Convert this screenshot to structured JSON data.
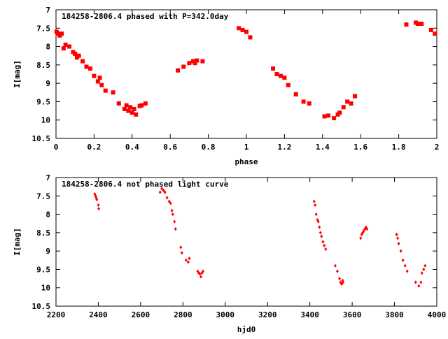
{
  "chart_data": [
    {
      "type": "scatter",
      "title": "184258-2806.4 phased with P=342.0day",
      "xlabel": "phase",
      "ylabel": "I[mag]",
      "xlim": [
        0,
        2
      ],
      "ylim": [
        10.5,
        7
      ],
      "y_inverted": true,
      "xticks": [
        "0",
        "0.2",
        "0.4",
        "0.6",
        "0.8",
        "1",
        "1.2",
        "1.4",
        "1.6",
        "1.8",
        "2"
      ],
      "yticks": [
        "7",
        "7.5",
        "8",
        "8.5",
        "9",
        "9.5",
        "10",
        "10.5"
      ],
      "marker": "filled-square",
      "color": "#ff0000",
      "grid": false,
      "legend": "none",
      "x": [
        0.003,
        0.01,
        0.02,
        0.03,
        0.05,
        0.07,
        0.09,
        0.1,
        0.12,
        0.14,
        0.16,
        0.18,
        0.2,
        0.22,
        0.24,
        0.26,
        0.3,
        0.33,
        0.36,
        0.38,
        0.4,
        0.42,
        0.45,
        0.47,
        0.64,
        0.67,
        0.7,
        0.72,
        0.74,
        0.77,
        0.96,
        0.98,
        1.0,
        1.02,
        1.14,
        1.16,
        1.18,
        1.2,
        1.22,
        1.26,
        1.3,
        1.33,
        1.41,
        1.46,
        1.49,
        1.51,
        1.53,
        1.57,
        1.84,
        1.89,
        1.9,
        1.92,
        1.97,
        1.99,
        0.04,
        0.11,
        0.23,
        0.37,
        0.39,
        0.41,
        0.44,
        0.73,
        1.43,
        1.48,
        1.55
      ],
      "y": [
        7.6,
        7.65,
        7.7,
        7.65,
        7.95,
        8.0,
        8.15,
        8.2,
        8.25,
        8.4,
        8.55,
        8.6,
        8.8,
        8.95,
        9.05,
        9.2,
        9.25,
        9.55,
        9.7,
        9.75,
        9.8,
        9.85,
        9.6,
        9.55,
        8.65,
        8.55,
        8.45,
        8.4,
        8.38,
        8.4,
        7.5,
        7.55,
        7.6,
        7.75,
        8.6,
        8.75,
        8.8,
        8.85,
        9.05,
        9.3,
        9.5,
        9.55,
        9.9,
        9.95,
        9.8,
        9.65,
        9.5,
        9.35,
        7.4,
        7.35,
        7.38,
        7.38,
        7.55,
        7.65,
        8.05,
        8.3,
        8.85,
        9.6,
        9.65,
        9.7,
        9.62,
        8.45,
        9.88,
        9.85,
        9.55
      ]
    },
    {
      "type": "scatter",
      "title": "184258-2806.4 not phased light curve",
      "xlabel": "hjd0",
      "ylabel": "I[mag]",
      "xlim": [
        2200,
        4000
      ],
      "ylim": [
        10.5,
        7
      ],
      "y_inverted": true,
      "xticks": [
        "2200",
        "2400",
        "2600",
        "2800",
        "3000",
        "3200",
        "3400",
        "3600",
        "3800",
        "4000"
      ],
      "yticks": [
        "7",
        "7.5",
        "8",
        "8.5",
        "9",
        "9.5",
        "10",
        "10.5"
      ],
      "marker": "filled-diamond",
      "color": "#ff0000",
      "grid": false,
      "legend": "none",
      "x": [
        2383,
        2387,
        2390,
        2393,
        2400,
        2402,
        2692,
        2700,
        2708,
        2715,
        2725,
        2735,
        2742,
        2748,
        2752,
        2760,
        2765,
        2790,
        2795,
        2815,
        2825,
        2830,
        2870,
        2875,
        2880,
        2885,
        2890,
        2895,
        3420,
        3425,
        3430,
        3436,
        3440,
        3445,
        3450,
        3455,
        3462,
        3468,
        3475,
        3520,
        3530,
        3540,
        3545,
        3550,
        3555,
        3557,
        3640,
        3645,
        3650,
        3655,
        3660,
        3665,
        3670,
        3810,
        3815,
        3820,
        3830,
        3840,
        3850,
        3860,
        3900,
        3915,
        3925,
        3930,
        3938,
        3945
      ],
      "y": [
        7.45,
        7.5,
        7.55,
        7.6,
        7.75,
        7.85,
        7.4,
        7.3,
        7.35,
        7.4,
        7.55,
        7.65,
        7.7,
        7.9,
        8.0,
        8.2,
        8.4,
        8.9,
        9.05,
        9.25,
        9.3,
        9.2,
        9.55,
        9.6,
        9.62,
        9.7,
        9.6,
        9.55,
        7.65,
        7.75,
        8.0,
        8.15,
        8.2,
        8.35,
        8.5,
        8.6,
        8.75,
        8.85,
        8.95,
        9.4,
        9.55,
        9.75,
        9.85,
        9.9,
        9.8,
        9.85,
        8.65,
        8.55,
        8.5,
        8.45,
        8.4,
        8.35,
        8.4,
        8.55,
        8.65,
        8.8,
        9.0,
        9.25,
        9.4,
        9.55,
        9.85,
        9.95,
        9.85,
        9.6,
        9.5,
        9.4
      ]
    }
  ]
}
